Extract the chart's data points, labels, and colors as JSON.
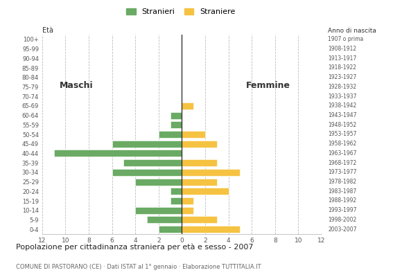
{
  "age_groups": [
    "100+",
    "95-99",
    "90-94",
    "85-89",
    "80-84",
    "75-79",
    "70-74",
    "65-69",
    "60-64",
    "55-59",
    "50-54",
    "45-49",
    "40-44",
    "35-39",
    "30-34",
    "25-29",
    "20-24",
    "15-19",
    "10-14",
    "5-9",
    "0-4"
  ],
  "birth_years": [
    "1907 o prima",
    "1908-1912",
    "1913-1917",
    "1918-1922",
    "1923-1927",
    "1928-1932",
    "1933-1937",
    "1938-1942",
    "1943-1947",
    "1948-1952",
    "1953-1957",
    "1958-1962",
    "1963-1967",
    "1968-1972",
    "1973-1977",
    "1978-1982",
    "1983-1987",
    "1988-1992",
    "1993-1997",
    "1998-2002",
    "2003-2007"
  ],
  "males": [
    0,
    0,
    0,
    0,
    0,
    0,
    0,
    0,
    1,
    1,
    2,
    6,
    11,
    5,
    6,
    4,
    1,
    1,
    4,
    3,
    2
  ],
  "females": [
    0,
    0,
    0,
    0,
    0,
    0,
    0,
    1,
    0,
    0,
    2,
    3,
    0,
    3,
    5,
    3,
    4,
    1,
    1,
    3,
    5
  ],
  "male_color": "#6aaa64",
  "female_color": "#f5c242",
  "title": "Popolazione per cittadinanza straniera per età e sesso - 2007",
  "subtitle": "COMUNE DI PASTORANO (CE) · Dati ISTAT al 1° gennaio · Elaborazione TUTTITALIA.IT",
  "label_eta": "Età",
  "label_anno": "Anno di nascita",
  "label_maschi": "Maschi",
  "label_femmine": "Femmine",
  "legend_stranieri": "Stranieri",
  "legend_straniere": "Straniere",
  "xlim": 12,
  "background_color": "#ffffff",
  "grid_color": "#bbbbbb"
}
